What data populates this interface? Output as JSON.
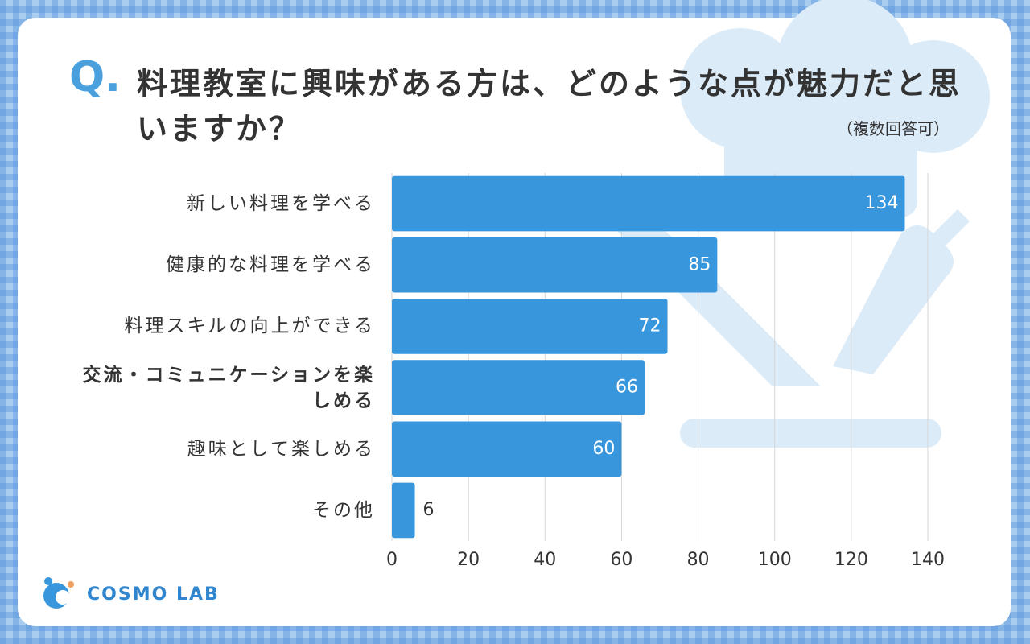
{
  "question_marker": "Q.",
  "logo": "COSMO LAB",
  "chart_data": {
    "type": "bar",
    "orientation": "horizontal",
    "title": "料理教室に興味がある方は、どのような点が魅力だと思いますか？",
    "subtitle": "（複数回答可）",
    "categories": [
      "新しい料理を学べる",
      "健康的な料理を学べる",
      "料理スキルの向上ができる",
      "交流・コミュニケーションを楽しめる",
      "趣味として楽しめる",
      "その他"
    ],
    "values": [
      134,
      85,
      72,
      66,
      60,
      6
    ],
    "color": "#3796dc",
    "xlim": [
      0,
      140
    ],
    "xticks": [
      0,
      20,
      40,
      60,
      80,
      100,
      120,
      140
    ],
    "grid": true
  }
}
